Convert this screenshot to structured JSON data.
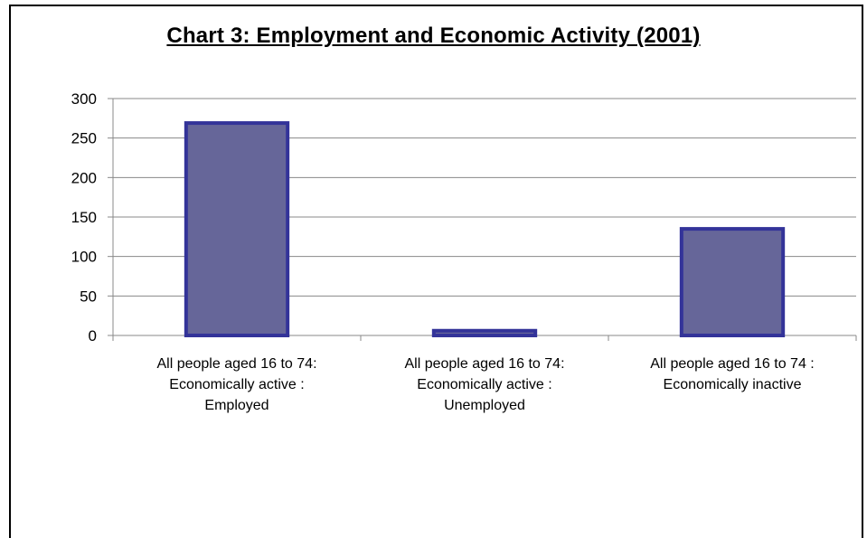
{
  "chart_data": {
    "type": "bar",
    "title": "Chart 3: Employment and Economic Activity  (2001)",
    "categories": [
      [
        "All people aged 16 to 74:",
        "Economically active :",
        "Employed"
      ],
      [
        "All people aged 16 to 74:",
        "Economically active :",
        "Unemployed"
      ],
      [
        "All people aged 16 to 74 :",
        "Economically inactive"
      ]
    ],
    "values": [
      269,
      6,
      135
    ],
    "ylim": [
      0,
      300
    ],
    "yticks": [
      0,
      50,
      100,
      150,
      200,
      250,
      300
    ],
    "grid": true,
    "legend": "none",
    "colors": {
      "bar_fill": "#666699",
      "bar_stroke": "#333399",
      "grid": "#888888"
    }
  }
}
